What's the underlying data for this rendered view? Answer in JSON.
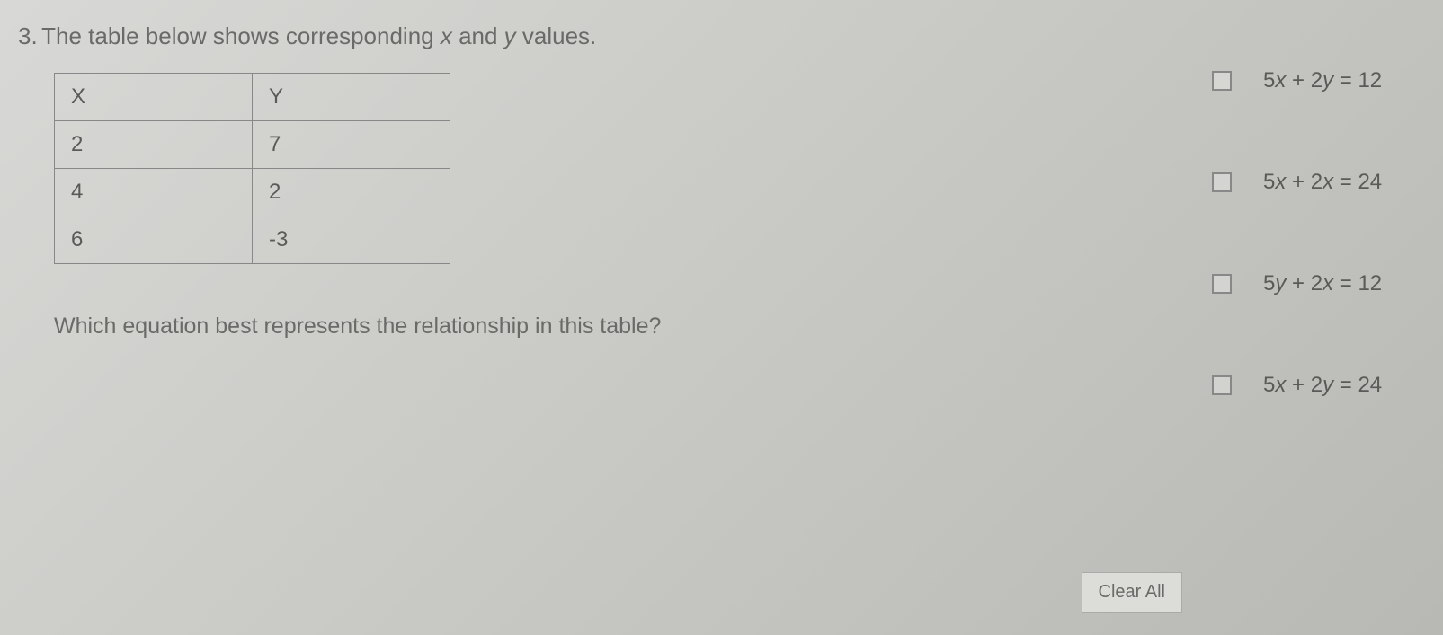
{
  "question": {
    "number": "3.",
    "text_part1": "The table below shows corresponding ",
    "var_x": "x",
    "text_part2": " and ",
    "var_y": "y",
    "text_part3": " values."
  },
  "table": {
    "headers": [
      "X",
      "Y"
    ],
    "rows": [
      [
        "2",
        "7"
      ],
      [
        "4",
        "2"
      ],
      [
        "6",
        "-3"
      ]
    ]
  },
  "sub_question": "Which equation best represents the relationship in this table?",
  "options": [
    {
      "coef1": "5",
      "var1": "x",
      "op": " + ",
      "coef2": "2",
      "var2": "y",
      "eq": " = ",
      "rhs": "12"
    },
    {
      "coef1": "5",
      "var1": "x",
      "op": " + ",
      "coef2": "2",
      "var2": "x",
      "eq": " = ",
      "rhs": "24"
    },
    {
      "coef1": "5",
      "var1": "y",
      "op": " + ",
      "coef2": "2",
      "var2": "x",
      "eq": " = ",
      "rhs": "12"
    },
    {
      "coef1": "5",
      "var1": "x",
      "op": " + ",
      "coef2": "2",
      "var2": "y",
      "eq": " = ",
      "rhs": "24"
    }
  ],
  "clear_button": "Clear All",
  "colors": {
    "text": "#5a5a58",
    "border": "#888888",
    "background_start": "#d8d8d6",
    "background_end": "#b8b8b4"
  }
}
